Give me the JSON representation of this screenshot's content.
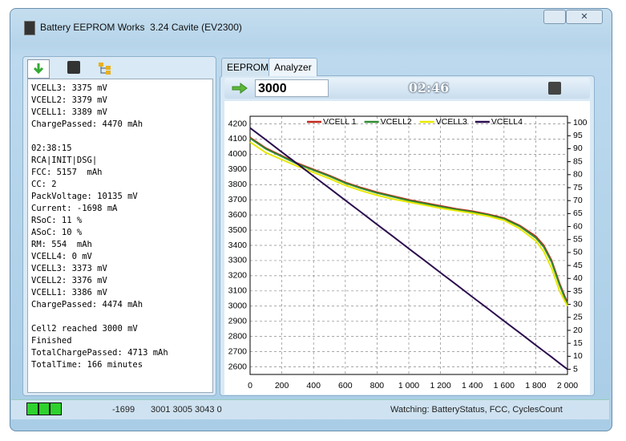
{
  "window": {
    "title": "Battery EEPROM Works  3.24 Cavite (EV2300)"
  },
  "log": [
    [
      "VCELL3: 3375 mV",
      "VCELL2: 3379 mV",
      "VCELL1: 3389 mV",
      "ChargePassed: 4470 mAh"
    ],
    [
      "02:38:15",
      "RCA|INIT|DSG|",
      "FCC: 5157  mAh",
      "CC: 2",
      "PackVoltage: 10135 mV",
      "Current: -1698 mA",
      "RSoC: 11 %",
      "ASoC: 10 %",
      "RM: 554  mAh",
      "VCELL4: 0 mV",
      "VCELL3: 3373 mV",
      "VCELL2: 3376 mV",
      "VCELL1: 3386 mV",
      "ChargePassed: 4474 mAh"
    ],
    [
      "Cell2 reached 3000 mV",
      "Finished",
      "TotalChargePassed: 4713 mAh",
      "TotalTime: 166 minutes"
    ]
  ],
  "tabs": [
    "EEPROM",
    "Analyzer"
  ],
  "toolbar": {
    "target": "3000",
    "timer": "02:46"
  },
  "status_bar": [
    "-1699",
    "3001 3005 3043 0",
    "Watching: BatteryStatus, FCC, CyclesCount"
  ],
  "chart_data": {
    "type": "line",
    "x": [
      0,
      100,
      200,
      300,
      400,
      500,
      600,
      700,
      800,
      900,
      1000,
      1100,
      1200,
      1300,
      1400,
      1500,
      1600,
      1700,
      1800,
      1850,
      1900,
      1950,
      2000
    ],
    "series": [
      {
        "name": "VCELL 1",
        "color": "#c0281e",
        "values": [
          4110,
          4040,
          3990,
          3940,
          3900,
          3860,
          3815,
          3780,
          3750,
          3725,
          3700,
          3680,
          3660,
          3640,
          3625,
          3605,
          3580,
          3530,
          3460,
          3400,
          3300,
          3150,
          3020
        ]
      },
      {
        "name": "VCELL2",
        "color": "#2e8b2e",
        "values": [
          4105,
          4035,
          3985,
          3935,
          3895,
          3855,
          3810,
          3775,
          3745,
          3720,
          3695,
          3675,
          3655,
          3636,
          3620,
          3600,
          3575,
          3525,
          3450,
          3390,
          3290,
          3140,
          3010
        ]
      },
      {
        "name": "VCELL3",
        "color": "#e8e800",
        "values": [
          4080,
          4010,
          3965,
          3920,
          3880,
          3840,
          3795,
          3760,
          3730,
          3705,
          3685,
          3665,
          3645,
          3628,
          3612,
          3592,
          3565,
          3510,
          3430,
          3360,
          3250,
          3100,
          3000
        ]
      },
      {
        "name": "VCELL4",
        "color": "#2b0d4e",
        "axis": "y2",
        "values": [
          98,
          93.4,
          88.7,
          84.1,
          79.4,
          74.8,
          70.1,
          65.5,
          60.8,
          56.2,
          51.5,
          46.9,
          42.2,
          37.6,
          32.9,
          28.3,
          23.6,
          19,
          14.3,
          12,
          9.7,
          7.3,
          5
        ]
      }
    ],
    "xlim": [
      0,
      2000
    ],
    "xticks": [
      0,
      200,
      400,
      600,
      800,
      {
        "value": 1000,
        "label": "1 000"
      },
      {
        "value": 1200,
        "label": "1 200"
      },
      {
        "value": 1400,
        "label": "1 400"
      },
      {
        "value": 1600,
        "label": "1 600"
      },
      {
        "value": 1800,
        "label": "1 800"
      },
      {
        "value": 2000,
        "label": "2 000"
      }
    ],
    "ylim": [
      2550,
      4250
    ],
    "yticks": [
      2600,
      2700,
      2800,
      2900,
      3000,
      3100,
      3200,
      3300,
      3400,
      3500,
      3600,
      3700,
      3800,
      3900,
      4000,
      4100,
      4200
    ],
    "y2lim": [
      3,
      102.5
    ],
    "y2ticks": [
      5,
      10,
      15,
      20,
      25,
      30,
      35,
      40,
      45,
      50,
      55,
      60,
      65,
      70,
      75,
      80,
      85,
      90,
      95,
      100
    ],
    "grid": true,
    "legend": "top"
  }
}
